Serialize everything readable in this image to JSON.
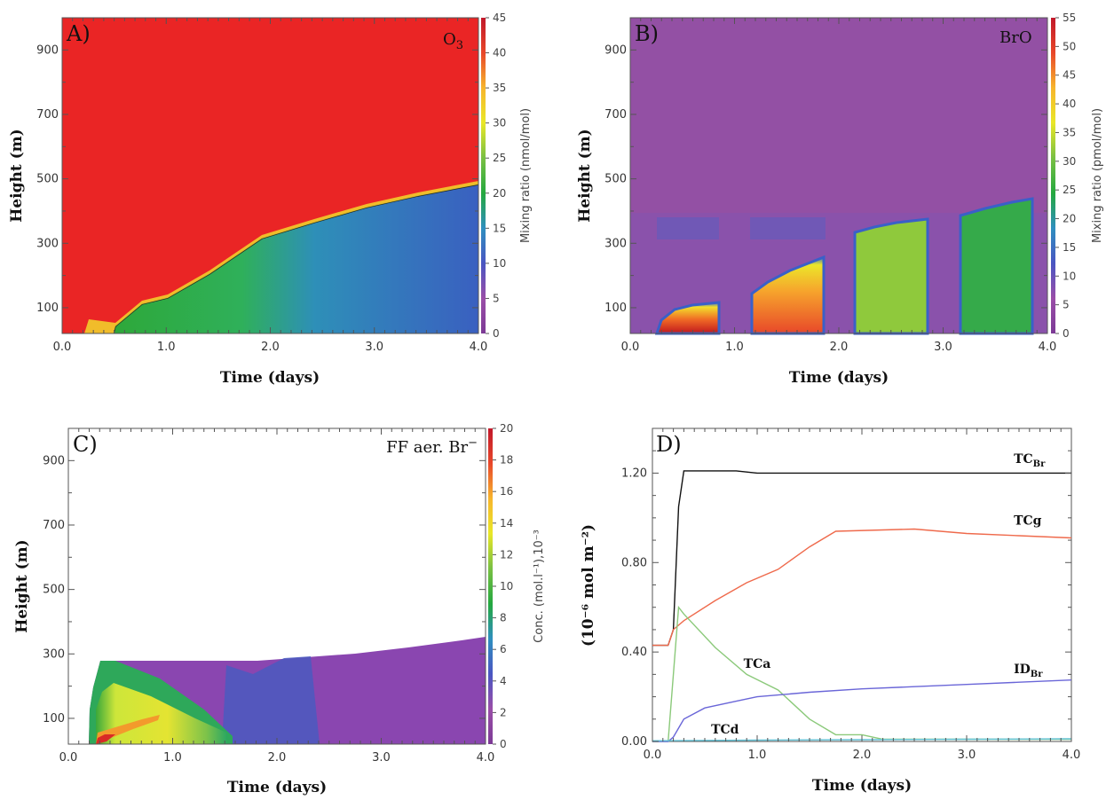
{
  "colorbar_colors": [
    "#7c3a95",
    "#9a4ea8",
    "#4a56c2",
    "#2f8fbf",
    "#24a83f",
    "#79c043",
    "#e9e728",
    "#f7b52d",
    "#e8472a",
    "#c1182a"
  ],
  "panels": {
    "A": {
      "letter": "A)",
      "species": "O",
      "species_sub": "3",
      "xlabel": "Time (days)",
      "ylabel": "Height (m)",
      "x_ticks": [
        "0.0",
        "1.0",
        "2.0",
        "3.0",
        "4.0"
      ],
      "y_ticks": [
        "100",
        "300",
        "500",
        "700",
        "900"
      ],
      "cb_ticks": [
        "0",
        "5",
        "10",
        "15",
        "20",
        "25",
        "30",
        "35",
        "40",
        "45"
      ],
      "cb_label": "Mixing ratio (nmol/mol)"
    },
    "B": {
      "letter": "B)",
      "species": "BrO",
      "xlabel": "Time (days)",
      "ylabel": "Height (m)",
      "x_ticks": [
        "0.0",
        "1.0",
        "2.0",
        "3.0",
        "4.0"
      ],
      "y_ticks": [
        "100",
        "300",
        "500",
        "700",
        "900"
      ],
      "cb_ticks": [
        "0",
        "5",
        "10",
        "15",
        "20",
        "25",
        "30",
        "35",
        "40",
        "45",
        "50",
        "55"
      ],
      "cb_label": "Mixing ratio (pmol/mol)"
    },
    "C": {
      "letter": "C)",
      "species": "FF aer. Br",
      "species_sup": "−",
      "xlabel": "Time (days)",
      "ylabel": "Height (m)",
      "x_ticks": [
        "0.0",
        "1.0",
        "2.0",
        "3.0",
        "4.0"
      ],
      "y_ticks": [
        "100",
        "300",
        "500",
        "700",
        "900"
      ],
      "cb_ticks": [
        "0",
        "2",
        "4",
        "6",
        "8",
        "10",
        "12",
        "14",
        "16",
        "18",
        "20"
      ],
      "cb_label": "Conc. (mol.l⁻¹),10⁻³"
    },
    "D": {
      "letter": "D)",
      "xlabel": "Time (days)",
      "ylabel": "(10⁻⁶ mol m⁻²)",
      "x_ticks": [
        "0.0",
        "1.0",
        "2.0",
        "3.0",
        "4.0"
      ],
      "y_ticks": [
        "0.00",
        "0.40",
        "0.80",
        "1.20"
      ]
    }
  },
  "chart_data": [
    {
      "type": "heatmap",
      "panel": "A",
      "title": "O3",
      "xlabel": "Time (days)",
      "ylabel": "Height (m)",
      "xlim": [
        0,
        4
      ],
      "ylim": [
        20,
        1000
      ],
      "colorbar_label": "Mixing ratio (nmol/mol)",
      "colorbar_range": [
        0,
        45
      ],
      "boundary_height_m": {
        "x": [
          0.5,
          0.8,
          1.1,
          1.5,
          2.0,
          2.5,
          3.0,
          3.5,
          4.0
        ],
        "y": [
          30,
          95,
          125,
          200,
          310,
          360,
          405,
          440,
          470
        ]
      },
      "above_boundary_value": 43,
      "below_boundary_value": 12
    },
    {
      "type": "heatmap",
      "panel": "B",
      "title": "BrO",
      "xlabel": "Time (days)",
      "ylabel": "Height (m)",
      "xlim": [
        0,
        4
      ],
      "ylim": [
        20,
        1000
      ],
      "colorbar_label": "Mixing ratio (pmol/mol)",
      "colorbar_range": [
        0,
        55
      ],
      "daytime_blocks": [
        {
          "x": [
            0.25,
            0.85
          ],
          "top_m": [
            30,
            100
          ],
          "peak_value": 55
        },
        {
          "x": [
            1.15,
            1.85
          ],
          "top_m": [
            130,
            250
          ],
          "peak_value": 45
        },
        {
          "x": [
            2.15,
            2.85
          ],
          "top_m": [
            320,
            360
          ],
          "peak_value": 28
        },
        {
          "x": [
            3.15,
            3.85
          ],
          "top_m": [
            380,
            430
          ],
          "peak_value": 22
        }
      ]
    },
    {
      "type": "heatmap",
      "panel": "C",
      "title": "FF aer. Br-",
      "xlabel": "Time (days)",
      "ylabel": "Height (m)",
      "xlim": [
        0,
        4
      ],
      "ylim": [
        20,
        1000
      ],
      "colorbar_label": "Conc. (mol.l-1),10-3",
      "colorbar_range": [
        0,
        20
      ],
      "mixed_layer_top_m": {
        "x": [
          0.2,
          0.3,
          1.5,
          2.0,
          3.0,
          4.0
        ],
        "y": [
          290,
          375,
          375,
          385,
          420,
          475
        ]
      }
    },
    {
      "type": "line",
      "panel": "D",
      "xlabel": "Time (days)",
      "ylabel": "(10-6 mol m-2)",
      "xlim": [
        0,
        4
      ],
      "ylim": [
        0,
        1.4
      ],
      "series": [
        {
          "name": "TCBr",
          "color": "#111111",
          "x": [
            0,
            0.15,
            0.2,
            0.25,
            0.3,
            0.8,
            1.0,
            4.0
          ],
          "y": [
            0.43,
            0.43,
            0.5,
            1.05,
            1.21,
            1.21,
            1.2,
            1.2
          ]
        },
        {
          "name": "TCg",
          "color": "#ef6a4c",
          "x": [
            0,
            0.15,
            0.2,
            0.3,
            0.6,
            0.9,
            1.2,
            1.5,
            1.75,
            2.5,
            3.0,
            3.5,
            4.0
          ],
          "y": [
            0.43,
            0.43,
            0.5,
            0.54,
            0.63,
            0.71,
            0.77,
            0.87,
            0.94,
            0.95,
            0.93,
            0.92,
            0.91
          ]
        },
        {
          "name": "TCa",
          "color": "#8bc97a",
          "x": [
            0,
            0.15,
            0.2,
            0.25,
            0.3,
            0.6,
            0.9,
            1.2,
            1.5,
            1.75,
            2.0,
            2.2,
            4.0
          ],
          "y": [
            0,
            0,
            0.3,
            0.6,
            0.57,
            0.42,
            0.3,
            0.23,
            0.1,
            0.03,
            0.03,
            0.01,
            0.01
          ]
        },
        {
          "name": "IDBr",
          "color": "#6a66d8",
          "x": [
            0,
            0.15,
            0.2,
            0.3,
            0.5,
            0.8,
            1.0,
            1.5,
            2.0,
            2.5,
            3.0,
            3.5,
            4.0
          ],
          "y": [
            0,
            0,
            0.02,
            0.1,
            0.15,
            0.18,
            0.2,
            0.22,
            0.235,
            0.245,
            0.255,
            0.265,
            0.275
          ]
        },
        {
          "name": "TCd",
          "color": "#63c2d6",
          "x": [
            0,
            1.0,
            2.0,
            3.0,
            4.0
          ],
          "y": [
            0.003,
            0.006,
            0.008,
            0.01,
            0.012
          ]
        }
      ],
      "series_labels": [
        {
          "main": "TC",
          "sub": "Br"
        },
        {
          "main": "TCg",
          "sub": ""
        },
        {
          "main": "TCa",
          "sub": ""
        },
        {
          "main": "ID",
          "sub": "Br"
        },
        {
          "main": "TCd",
          "sub": ""
        }
      ]
    }
  ]
}
